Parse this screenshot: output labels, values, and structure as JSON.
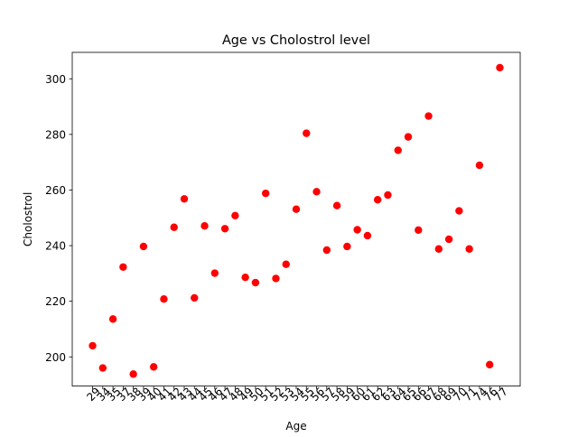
{
  "chart_data": {
    "type": "scatter",
    "title": "Age vs Cholostrol level",
    "xlabel": "Age",
    "ylabel": "Cholostrol",
    "categories": [
      "29",
      "34",
      "35",
      "37",
      "38",
      "39",
      "40",
      "41",
      "42",
      "43",
      "44",
      "45",
      "46",
      "47",
      "48",
      "49",
      "50",
      "51",
      "52",
      "53",
      "54",
      "55",
      "56",
      "57",
      "58",
      "59",
      "60",
      "61",
      "62",
      "63",
      "64",
      "65",
      "66",
      "67",
      "68",
      "69",
      "70",
      "71",
      "74",
      "76",
      "77"
    ],
    "series": [
      {
        "color": "#ff0000",
        "values": [
          204,
          196,
          213.6,
          232.3,
          193.8,
          239.7,
          196.4,
          220.8,
          246.6,
          256.8,
          221.2,
          247.1,
          230.1,
          246.1,
          250.8,
          228.6,
          226.7,
          258.8,
          228.2,
          233.3,
          253.1,
          280.4,
          259.4,
          238.4,
          254.4,
          239.7,
          245.7,
          243.6,
          256.5,
          258.2,
          274.3,
          279.1,
          245.6,
          286.6,
          238.8,
          242.3,
          252.5,
          238.8,
          268.9,
          197.2,
          304
        ]
      }
    ],
    "yticks": [
      200,
      220,
      240,
      260,
      280,
      300
    ],
    "ylim": [
      189.5,
      309.5
    ],
    "grid": false,
    "legend": "none"
  }
}
